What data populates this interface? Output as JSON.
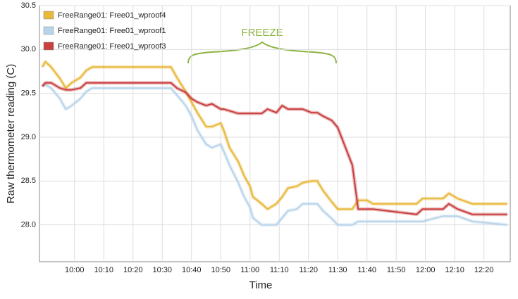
{
  "chart_data": {
    "type": "line",
    "x_label": "Time",
    "y_label": "Raw thermometer reading (C)",
    "annotation": "FREEZE",
    "x": [
      "09:49",
      "09:50",
      "09:52",
      "09:55",
      "09:57",
      "09:59",
      "10:02",
      "10:04",
      "10:06",
      "10:33",
      "10:35",
      "10:38",
      "10:40",
      "10:42",
      "10:45",
      "10:47",
      "10:50",
      "10:51",
      "10:53",
      "10:56",
      "10:58",
      "11:00",
      "11:01",
      "11:04",
      "11:06",
      "11:09",
      "11:11",
      "11:13",
      "11:16",
      "11:18",
      "11:21",
      "11:23",
      "11:25",
      "11:28",
      "11:30",
      "11:35",
      "11:37",
      "11:40",
      "11:42",
      "11:57",
      "11:59",
      "12:06",
      "12:08",
      "12:11",
      "12:16",
      "12:28"
    ],
    "series": [
      {
        "name": "FreeRange01: Free01_wproof4",
        "color": "#e8b83a",
        "values": [
          29.8,
          29.86,
          29.8,
          29.67,
          29.56,
          29.62,
          29.68,
          29.76,
          29.8,
          29.8,
          29.68,
          29.52,
          29.4,
          29.28,
          29.12,
          29.12,
          29.16,
          29.08,
          28.88,
          28.72,
          28.56,
          28.44,
          28.32,
          28.24,
          28.18,
          28.24,
          28.32,
          28.42,
          28.44,
          28.48,
          28.5,
          28.5,
          28.39,
          28.26,
          28.18,
          28.18,
          28.28,
          28.28,
          28.24,
          28.24,
          28.3,
          28.3,
          28.36,
          28.3,
          28.24,
          28.24
        ]
      },
      {
        "name": "FreeRange01: Free01_wproof1",
        "color": "#b8d4ea",
        "values": [
          29.58,
          29.6,
          29.56,
          29.44,
          29.32,
          29.36,
          29.44,
          29.52,
          29.56,
          29.56,
          29.48,
          29.36,
          29.24,
          29.08,
          28.92,
          28.88,
          28.92,
          28.84,
          28.68,
          28.48,
          28.32,
          28.2,
          28.08,
          28.0,
          28.0,
          28.0,
          28.08,
          28.16,
          28.18,
          28.24,
          28.24,
          28.24,
          28.16,
          28.07,
          28.0,
          28.0,
          28.04,
          28.04,
          28.04,
          28.04,
          28.04,
          28.1,
          28.1,
          28.1,
          28.04,
          28.0
        ]
      },
      {
        "name": "FreeRange01: Free01_wproof3",
        "color": "#c94040",
        "values": [
          29.58,
          29.62,
          29.62,
          29.56,
          29.54,
          29.54,
          29.56,
          29.62,
          29.62,
          29.62,
          29.56,
          29.51,
          29.44,
          29.4,
          29.36,
          29.38,
          29.32,
          29.32,
          29.3,
          29.27,
          29.27,
          29.27,
          29.27,
          29.27,
          29.32,
          29.28,
          29.36,
          29.32,
          29.32,
          29.32,
          29.28,
          29.28,
          29.24,
          29.19,
          29.11,
          28.68,
          28.18,
          28.18,
          28.18,
          28.12,
          28.18,
          28.18,
          28.24,
          28.18,
          28.12,
          28.12
        ]
      }
    ],
    "xlim": [
      "09:48",
      "12:29"
    ],
    "xticks": [
      "10:00",
      "10:10",
      "10:20",
      "10:30",
      "10:40",
      "10:50",
      "11:00",
      "11:10",
      "11:20",
      "11:30",
      "11:40",
      "11:50",
      "12:00",
      "12:10",
      "12:20"
    ],
    "ylim": [
      27.58,
      30.5
    ],
    "yticks": [
      {
        "value": 28,
        "label": "28.0"
      },
      28.5,
      {
        "value": 29,
        "label": "29.0"
      },
      29.5,
      {
        "value": 30,
        "label": "30.0"
      },
      30.5
    ],
    "grid": true,
    "legend": "top-left"
  }
}
